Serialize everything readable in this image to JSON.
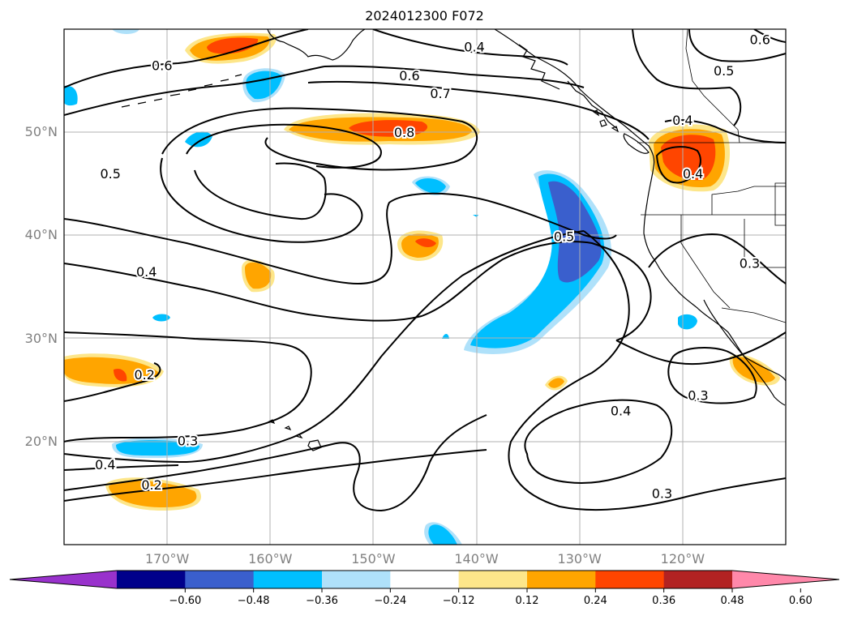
{
  "title": "2024012300 F072",
  "lat_labels": [
    {
      "label": "50°N",
      "lat": 50
    },
    {
      "label": "40°N",
      "lat": 40
    },
    {
      "label": "30°N",
      "lat": 30
    },
    {
      "label": "20°N",
      "lat": 20
    }
  ],
  "lon_labels": [
    {
      "label": "170°W",
      "lon": -170
    },
    {
      "label": "160°W",
      "lon": -160
    },
    {
      "label": "150°W",
      "lon": -150
    },
    {
      "label": "140°W",
      "lon": -140
    },
    {
      "label": "130°W",
      "lon": -130
    },
    {
      "label": "120°W",
      "lon": -120
    }
  ],
  "map_extent": {
    "lon_min": -180,
    "lon_max": -110,
    "lat_min": 10,
    "lat_max": 60
  },
  "contour_labels": [
    {
      "text": "0.6",
      "lon": -170.5,
      "lat": 56.5
    },
    {
      "text": "0.4",
      "lon": -140.2,
      "lat": 58.3
    },
    {
      "text": "0.6",
      "lon": -146.5,
      "lat": 55.5
    },
    {
      "text": "0.7",
      "lon": -143.5,
      "lat": 53.8
    },
    {
      "text": "0.8",
      "lon": -147.0,
      "lat": 50.0
    },
    {
      "text": "0.5",
      "lon": -175.5,
      "lat": 46.0
    },
    {
      "text": "0.5",
      "lon": -131.5,
      "lat": 39.9
    },
    {
      "text": "0.4",
      "lon": -172.0,
      "lat": 36.5
    },
    {
      "text": "0.4",
      "lon": -120.0,
      "lat": 51.2
    },
    {
      "text": "0.4",
      "lon": -119.0,
      "lat": 46.0
    },
    {
      "text": "0.5",
      "lon": -116.0,
      "lat": 56.0
    },
    {
      "text": "0.6",
      "lon": -112.5,
      "lat": 59.0
    },
    {
      "text": "0.3",
      "lon": -113.5,
      "lat": 37.3
    },
    {
      "text": "0.2",
      "lon": -172.2,
      "lat": 26.5
    },
    {
      "text": "0.3",
      "lon": -168.0,
      "lat": 20.1
    },
    {
      "text": "0.4",
      "lon": -176.0,
      "lat": 17.8
    },
    {
      "text": "0.2",
      "lon": -171.5,
      "lat": 15.8
    },
    {
      "text": "0.3",
      "lon": -118.5,
      "lat": 24.5
    },
    {
      "text": "0.4",
      "lon": -126.0,
      "lat": 23.0
    },
    {
      "text": "0.3",
      "lon": -122.0,
      "lat": 15.0
    }
  ],
  "fill_colors": {
    "neg_extreme": "#9932cc",
    "neg_060": "#00008b",
    "neg_048": "#3a5fcd",
    "neg_036": "#00bfff",
    "neg_024": "#afe1fa",
    "pos_012": "#fde68a",
    "pos_024": "#ffa500",
    "pos_036": "#ff4500",
    "pos_048": "#b22222",
    "pos_extreme": "#ff88aa"
  },
  "colorbar": {
    "ticks": [
      "−0.60",
      "−0.48",
      "−0.36",
      "−0.24",
      "−0.12",
      "0.12",
      "0.24",
      "0.36",
      "0.48",
      "0.60"
    ],
    "colors": [
      "#9932cc",
      "#00008b",
      "#3a5fcd",
      "#00bfff",
      "#afe1fa",
      "#ffffff",
      "#fde68a",
      "#ffa500",
      "#ff4500",
      "#b22222",
      "#ff88aa"
    ]
  }
}
